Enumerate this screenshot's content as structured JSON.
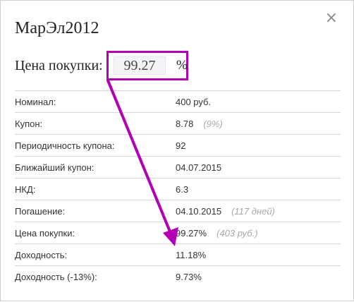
{
  "dialog": {
    "title": "МарЭл2012",
    "close_label": "×",
    "price_label": "Цена покупки:",
    "price_value": "99.27",
    "price_unit": "%",
    "accent_color": "#b400b4"
  },
  "rows": [
    {
      "label": "Номинал:",
      "value": "400 руб.",
      "note": ""
    },
    {
      "label": "Купон:",
      "value": "8.78",
      "note": "(9%)"
    },
    {
      "label": "Периодичность купона:",
      "value": "92",
      "note": ""
    },
    {
      "label": "Ближайший купон:",
      "value": "04.07.2015",
      "note": ""
    },
    {
      "label": "НКД:",
      "value": "6.3",
      "note": ""
    },
    {
      "label": "Погашение:",
      "value": "04.10.2015",
      "note": "(117 дней)"
    },
    {
      "label": "Цена покупки:",
      "value": "99.27%",
      "note": "(403 руб.)"
    },
    {
      "label": "Доходность:",
      "value": "11.18%",
      "note": ""
    },
    {
      "label": "Доходность (-13%):",
      "value": "9.73%",
      "note": ""
    }
  ]
}
